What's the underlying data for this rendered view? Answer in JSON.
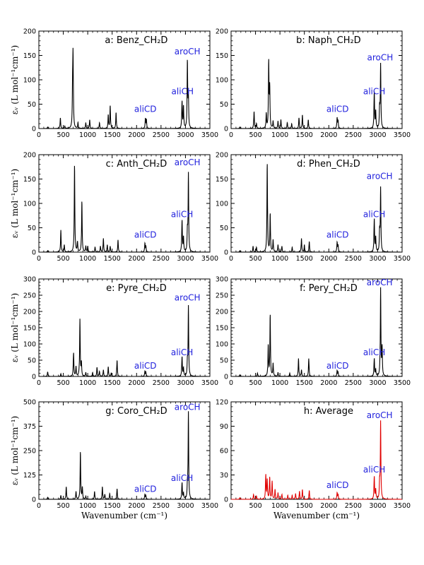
{
  "figure": {
    "xlabel": "Wavenumber (cm⁻¹)",
    "ylabel": "εᵥ (L mol⁻¹cm⁻¹)"
  },
  "chart_data": [
    {
      "type": "line",
      "panel": "a",
      "title": "a: Benz_CH₂D",
      "xlim": [
        0,
        3500
      ],
      "ylim": [
        0,
        200
      ],
      "xticks": [
        0,
        500,
        1000,
        1500,
        2000,
        2500,
        3000,
        3500
      ],
      "yticks": [
        0,
        50,
        100,
        150,
        200
      ],
      "line_color": "#000000",
      "peaks": [
        [
          180,
          3
        ],
        [
          440,
          22
        ],
        [
          530,
          5
        ],
        [
          690,
          70
        ],
        [
          700,
          142
        ],
        [
          800,
          12
        ],
        [
          960,
          12
        ],
        [
          1040,
          18
        ],
        [
          1240,
          12
        ],
        [
          1420,
          28
        ],
        [
          1460,
          47
        ],
        [
          1580,
          33
        ],
        [
          2180,
          20
        ],
        [
          2200,
          18
        ],
        [
          2930,
          55
        ],
        [
          2960,
          45
        ],
        [
          3040,
          137
        ],
        [
          3060,
          60
        ]
      ],
      "annotations": [
        {
          "text": "aliCD",
          "x": 2180,
          "y": 34
        },
        {
          "text": "aliCH",
          "x": 2940,
          "y": 70
        },
        {
          "text": "aroCH",
          "x": 3040,
          "y": 152
        }
      ]
    },
    {
      "type": "line",
      "panel": "b",
      "title": "b: Naph_CH₂D",
      "xlim": [
        0,
        3500
      ],
      "ylim": [
        0,
        200
      ],
      "xticks": [
        0,
        500,
        1000,
        1500,
        2000,
        2500,
        3000,
        3500
      ],
      "yticks": [
        0,
        50,
        100,
        150,
        200
      ],
      "line_color": "#000000",
      "peaks": [
        [
          180,
          3
        ],
        [
          470,
          35
        ],
        [
          520,
          10
        ],
        [
          720,
          30
        ],
        [
          770,
          135
        ],
        [
          790,
          80
        ],
        [
          860,
          15
        ],
        [
          960,
          15
        ],
        [
          1020,
          18
        ],
        [
          1150,
          12
        ],
        [
          1240,
          10
        ],
        [
          1390,
          22
        ],
        [
          1460,
          28
        ],
        [
          1580,
          18
        ],
        [
          2170,
          22
        ],
        [
          2190,
          16
        ],
        [
          2930,
          75
        ],
        [
          2960,
          35
        ],
        [
          3060,
          130
        ],
        [
          3040,
          40
        ]
      ],
      "annotations": [
        {
          "text": "aliCD",
          "x": 2180,
          "y": 34
        },
        {
          "text": "aliCH",
          "x": 2930,
          "y": 70
        },
        {
          "text": "aroCH",
          "x": 3050,
          "y": 140
        }
      ]
    },
    {
      "type": "line",
      "panel": "c",
      "title": "c: Anth_CH₂D",
      "xlim": [
        0,
        3500
      ],
      "ylim": [
        0,
        200
      ],
      "xticks": [
        0,
        500,
        1000,
        1500,
        2000,
        2500,
        3000,
        3500
      ],
      "yticks": [
        0,
        50,
        100,
        150,
        200
      ],
      "line_color": "#000000",
      "peaks": [
        [
          180,
          3
        ],
        [
          450,
          45
        ],
        [
          520,
          15
        ],
        [
          730,
          180
        ],
        [
          790,
          20
        ],
        [
          880,
          105
        ],
        [
          960,
          12
        ],
        [
          1000,
          12
        ],
        [
          1150,
          10
        ],
        [
          1260,
          12
        ],
        [
          1320,
          28
        ],
        [
          1400,
          15
        ],
        [
          1460,
          12
        ],
        [
          1620,
          25
        ],
        [
          2170,
          18
        ],
        [
          2190,
          12
        ],
        [
          2930,
          65
        ],
        [
          2960,
          30
        ],
        [
          3060,
          160
        ],
        [
          3040,
          40
        ]
      ],
      "annotations": [
        {
          "text": "aliCD",
          "x": 2180,
          "y": 30
        },
        {
          "text": "aliCH",
          "x": 2930,
          "y": 72
        },
        {
          "text": "aroCH",
          "x": 3040,
          "y": 178
        }
      ]
    },
    {
      "type": "line",
      "panel": "d",
      "title": "d: Phen_CH₂D",
      "xlim": [
        0,
        3500
      ],
      "ylim": [
        0,
        200
      ],
      "xticks": [
        0,
        500,
        1000,
        1500,
        2000,
        2500,
        3000,
        3500
      ],
      "yticks": [
        0,
        50,
        100,
        150,
        200
      ],
      "line_color": "#000000",
      "peaks": [
        [
          180,
          3
        ],
        [
          450,
          12
        ],
        [
          520,
          10
        ],
        [
          740,
          183
        ],
        [
          800,
          78
        ],
        [
          860,
          25
        ],
        [
          960,
          15
        ],
        [
          1040,
          12
        ],
        [
          1250,
          10
        ],
        [
          1440,
          28
        ],
        [
          1500,
          15
        ],
        [
          1600,
          22
        ],
        [
          2170,
          20
        ],
        [
          2190,
          14
        ],
        [
          2930,
          68
        ],
        [
          2960,
          30
        ],
        [
          3060,
          130
        ],
        [
          3040,
          40
        ]
      ],
      "annotations": [
        {
          "text": "aliCD",
          "x": 2180,
          "y": 30
        },
        {
          "text": "aliCH",
          "x": 2930,
          "y": 72
        },
        {
          "text": "aroCH",
          "x": 3040,
          "y": 150
        }
      ]
    },
    {
      "type": "line",
      "panel": "e",
      "title": "e: Pyre_CH₂D",
      "xlim": [
        0,
        3500
      ],
      "ylim": [
        0,
        300
      ],
      "xticks": [
        0,
        500,
        1000,
        1500,
        2000,
        2500,
        3000,
        3500
      ],
      "yticks": [
        0,
        50,
        100,
        150,
        200,
        250,
        300
      ],
      "line_color": "#000000",
      "peaks": [
        [
          180,
          14
        ],
        [
          450,
          8
        ],
        [
          710,
          73
        ],
        [
          760,
          30
        ],
        [
          840,
          175
        ],
        [
          870,
          40
        ],
        [
          960,
          12
        ],
        [
          1100,
          12
        ],
        [
          1190,
          28
        ],
        [
          1240,
          15
        ],
        [
          1320,
          20
        ],
        [
          1420,
          30
        ],
        [
          1480,
          10
        ],
        [
          1600,
          50
        ],
        [
          2170,
          16
        ],
        [
          2190,
          12
        ],
        [
          2930,
          60
        ],
        [
          2960,
          25
        ],
        [
          3060,
          215
        ],
        [
          3040,
          40
        ]
      ],
      "annotations": [
        {
          "text": "aliCD",
          "x": 2180,
          "y": 24
        },
        {
          "text": "aliCH",
          "x": 2930,
          "y": 65
        },
        {
          "text": "aroCH",
          "x": 3040,
          "y": 234
        }
      ]
    },
    {
      "type": "line",
      "panel": "f",
      "title": "f: Pery_CH₂D",
      "xlim": [
        0,
        3500
      ],
      "ylim": [
        0,
        300
      ],
      "xticks": [
        0,
        500,
        1000,
        1500,
        2000,
        2500,
        3000,
        3500
      ],
      "yticks": [
        0,
        50,
        100,
        150,
        200,
        250,
        300
      ],
      "line_color": "#000000",
      "peaks": [
        [
          180,
          5
        ],
        [
          540,
          10
        ],
        [
          760,
          95
        ],
        [
          800,
          190
        ],
        [
          860,
          40
        ],
        [
          960,
          12
        ],
        [
          1200,
          10
        ],
        [
          1380,
          55
        ],
        [
          1440,
          20
        ],
        [
          1590,
          55
        ],
        [
          2170,
          18
        ],
        [
          2190,
          12
        ],
        [
          2930,
          55
        ],
        [
          2960,
          20
        ],
        [
          3060,
          270
        ],
        [
          3090,
          85
        ]
      ],
      "annotations": [
        {
          "text": "aliCD",
          "x": 2180,
          "y": 24
        },
        {
          "text": "aliCH",
          "x": 2930,
          "y": 65
        },
        {
          "text": "aroCH",
          "x": 3040,
          "y": 280
        }
      ]
    },
    {
      "type": "line",
      "panel": "g",
      "title": "g: Coro_CH₂D",
      "xlim": [
        0,
        3500
      ],
      "ylim": [
        0,
        500
      ],
      "xticks": [
        0,
        500,
        1000,
        1500,
        2000,
        2500,
        3000,
        3500
      ],
      "yticks": [
        0,
        125,
        250,
        375,
        500
      ],
      "line_color": "#000000",
      "peaks": [
        [
          180,
          10
        ],
        [
          450,
          20
        ],
        [
          560,
          65
        ],
        [
          760,
          40
        ],
        [
          850,
          245
        ],
        [
          890,
          60
        ],
        [
          960,
          15
        ],
        [
          1140,
          40
        ],
        [
          1300,
          65
        ],
        [
          1350,
          25
        ],
        [
          1450,
          30
        ],
        [
          1600,
          55
        ],
        [
          2170,
          25
        ],
        [
          2190,
          18
        ],
        [
          2930,
          85
        ],
        [
          2960,
          30
        ],
        [
          3060,
          445
        ],
        [
          3040,
          60
        ]
      ],
      "annotations": [
        {
          "text": "aliCD",
          "x": 2180,
          "y": 38
        },
        {
          "text": "aliCH",
          "x": 2930,
          "y": 95
        },
        {
          "text": "aroCH",
          "x": 3040,
          "y": 458
        }
      ]
    },
    {
      "type": "line",
      "panel": "h",
      "title": "h: Average",
      "xlim": [
        0,
        3500
      ],
      "ylim": [
        0,
        120
      ],
      "xticks": [
        0,
        500,
        1000,
        1500,
        2000,
        2500,
        3000,
        3500
      ],
      "yticks": [
        0,
        30,
        60,
        90,
        120
      ],
      "line_color": "#e00000",
      "peaks": [
        [
          180,
          2
        ],
        [
          460,
          6
        ],
        [
          520,
          4
        ],
        [
          710,
          30
        ],
        [
          740,
          24
        ],
        [
          790,
          27
        ],
        [
          840,
          22
        ],
        [
          900,
          12
        ],
        [
          960,
          8
        ],
        [
          1040,
          6
        ],
        [
          1160,
          5
        ],
        [
          1250,
          5
        ],
        [
          1320,
          7
        ],
        [
          1400,
          10
        ],
        [
          1460,
          12
        ],
        [
          1600,
          11
        ],
        [
          2170,
          8
        ],
        [
          2190,
          6
        ],
        [
          2930,
          28
        ],
        [
          2960,
          12
        ],
        [
          3060,
          95
        ],
        [
          3040,
          18
        ]
      ],
      "annotations": [
        {
          "text": "aliCD",
          "x": 2180,
          "y": 14
        },
        {
          "text": "aliCH",
          "x": 2930,
          "y": 33
        },
        {
          "text": "aroCH",
          "x": 3040,
          "y": 100
        }
      ]
    }
  ]
}
